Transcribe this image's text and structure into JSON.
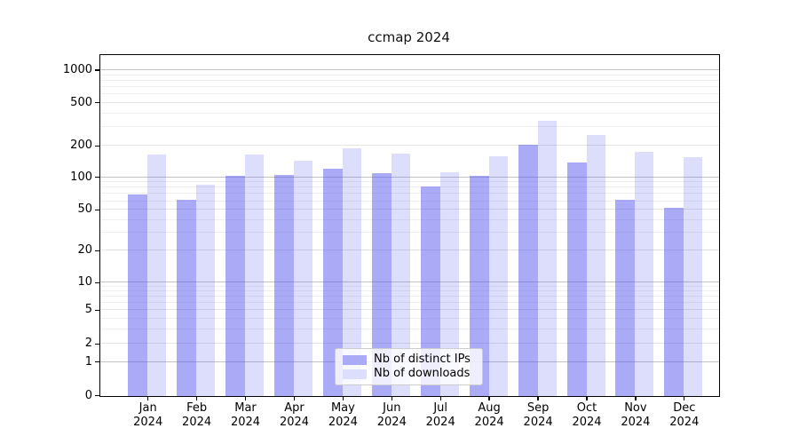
{
  "title": "ccmap 2024",
  "colors": {
    "bar_ips": "#aaaaf6",
    "bar_ips_rgba": "rgba(85,85,238,0.5)",
    "bar_downloads": "#ddddfc",
    "bar_downloads_rgba": "rgba(85,85,238,0.2)",
    "grid_major": "#c3c3c3",
    "grid_submajor": "#e3e3e3",
    "grid_minor": "#efefef",
    "axis": "#000000",
    "legend_border": "#cccccc"
  },
  "legend": {
    "items": [
      {
        "label": "Nb of distinct IPs",
        "swatch": "#aaaaf6"
      },
      {
        "label": "Nb of downloads",
        "swatch": "#ddddfc"
      }
    ]
  },
  "chart_data": {
    "type": "bar",
    "title": "ccmap 2024",
    "categories": [
      "Jan 2024",
      "Feb 2024",
      "Mar 2024",
      "Apr 2024",
      "May 2024",
      "Jun 2024",
      "Jul 2024",
      "Aug 2024",
      "Sep 2024",
      "Oct 2024",
      "Nov 2024",
      "Dec 2024"
    ],
    "series": [
      {
        "name": "Nb of distinct IPs",
        "values": [
          70,
          62,
          105,
          106,
          123,
          111,
          83,
          104,
          206,
          139,
          62,
          53
        ]
      },
      {
        "name": "Nb of downloads",
        "values": [
          167,
          86,
          168,
          146,
          193,
          172,
          113,
          160,
          345,
          255,
          176,
          158
        ]
      }
    ],
    "xlabel": "",
    "ylabel": "",
    "yscale": "symlog (log above 1, 0 shown at axis bottom)",
    "yticks": [
      0,
      1,
      2,
      5,
      10,
      20,
      50,
      100,
      200,
      500,
      1000
    ],
    "ylim": [
      0,
      1400
    ],
    "grid": true,
    "legend_position": "lower center"
  }
}
